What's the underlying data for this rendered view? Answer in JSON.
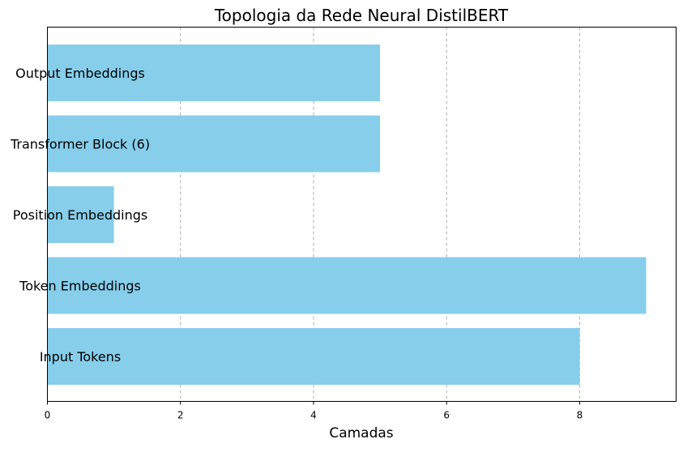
{
  "chart_data": {
    "type": "bar",
    "orientation": "horizontal",
    "title": "Topologia da Rede Neural DistilBERT",
    "xlabel": "Camadas",
    "ylabel": "",
    "categories": [
      "Input Tokens",
      "Token Embeddings",
      "Position Embeddings",
      "Transformer Block (6)",
      "Output Embeddings"
    ],
    "values": [
      8,
      9,
      1,
      5,
      5
    ],
    "xlim": [
      0,
      9.45
    ],
    "xticks": [
      0,
      2,
      4,
      6,
      8
    ],
    "grid": "x-dashed",
    "bar_color": "#87ceeb",
    "grid_color": "#b0b0b0"
  }
}
